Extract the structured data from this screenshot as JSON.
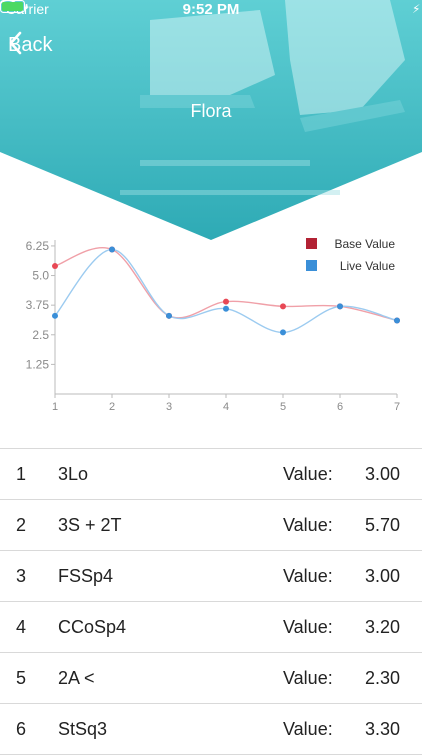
{
  "status": {
    "carrier": "Carrier",
    "time": "9:52 PM"
  },
  "nav": {
    "back_label": "Back",
    "title": "Flora"
  },
  "colors": {
    "hero_teal": "#34b7c0",
    "base_value": "#b22234",
    "live_value": "#3a8fd8",
    "base_line": "#f0a0a8",
    "live_line": "#9ccbf0"
  },
  "chart_data": {
    "type": "line",
    "x": [
      1,
      2,
      3,
      4,
      5,
      6,
      7
    ],
    "xticks": [
      "1",
      "2",
      "3",
      "4",
      "5",
      "6",
      "7"
    ],
    "yticks": [
      "1.25",
      "2.5",
      "3.75",
      "5.0",
      "6.25"
    ],
    "ylim": [
      0,
      6.5
    ],
    "legend_position": "top-right",
    "series": [
      {
        "name": "Base Value",
        "values": [
          5.4,
          6.1,
          3.3,
          3.9,
          3.7,
          3.7,
          3.1
        ]
      },
      {
        "name": "Live Value",
        "values": [
          3.3,
          6.1,
          3.3,
          3.6,
          2.6,
          3.7,
          3.1
        ]
      }
    ]
  },
  "elements": [
    {
      "index": "1",
      "code": "3Lo",
      "label": "Value:",
      "value": "3.00"
    },
    {
      "index": "2",
      "code": "3S + 2T",
      "label": "Value:",
      "value": "5.70"
    },
    {
      "index": "3",
      "code": "FSSp4",
      "label": "Value:",
      "value": "3.00"
    },
    {
      "index": "4",
      "code": "CCoSp4",
      "label": "Value:",
      "value": "3.20"
    },
    {
      "index": "5",
      "code": "2A <",
      "label": "Value:",
      "value": "2.30"
    },
    {
      "index": "6",
      "code": "StSq3",
      "label": "Value:",
      "value": "3.30"
    }
  ]
}
